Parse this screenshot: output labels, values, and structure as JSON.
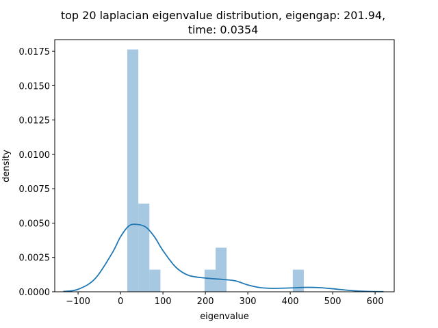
{
  "chart_data": {
    "type": "bar",
    "title_lines": [
      "top 20 laplacian eigenvalue distribution, eigengap: 201.94,",
      "time: 0.0354"
    ],
    "xlabel": "eigenvalue",
    "ylabel": "density",
    "xlim": [
      -155,
      645
    ],
    "ylim": [
      0,
      0.01835
    ],
    "xticks": [
      -100,
      0,
      100,
      200,
      300,
      400,
      500,
      600
    ],
    "xtick_labels": [
      "−100",
      "0",
      "100",
      "200",
      "300",
      "400",
      "500",
      "600"
    ],
    "yticks": [
      0,
      0.0025,
      0.005,
      0.0075,
      0.01,
      0.0125,
      0.015,
      0.0175
    ],
    "ytick_labels": [
      "0.0000",
      "0.0025",
      "0.0050",
      "0.0075",
      "0.0100",
      "0.0125",
      "0.0150",
      "0.0175"
    ],
    "histogram": {
      "color": "#a6c8e0",
      "bins": [
        {
          "x0": 16,
          "x1": 42,
          "density": 0.01763
        },
        {
          "x0": 42,
          "x1": 68,
          "density": 0.00642
        },
        {
          "x0": 68,
          "x1": 94,
          "density": 0.00161
        },
        {
          "x0": 94,
          "x1": 120,
          "density": 0
        },
        {
          "x0": 120,
          "x1": 146,
          "density": 0
        },
        {
          "x0": 146,
          "x1": 172,
          "density": 0
        },
        {
          "x0": 172,
          "x1": 198,
          "density": 0
        },
        {
          "x0": 198,
          "x1": 224,
          "density": 0.00161
        },
        {
          "x0": 224,
          "x1": 250,
          "density": 0.00321
        },
        {
          "x0": 250,
          "x1": 276,
          "density": 0
        },
        {
          "x0": 276,
          "x1": 302,
          "density": 0
        },
        {
          "x0": 302,
          "x1": 328,
          "density": 0
        },
        {
          "x0": 328,
          "x1": 354,
          "density": 0
        },
        {
          "x0": 354,
          "x1": 380,
          "density": 0
        },
        {
          "x0": 380,
          "x1": 406,
          "density": 0
        },
        {
          "x0": 406,
          "x1": 432,
          "density": 0.00161
        }
      ]
    },
    "kde": {
      "color": "#1f77b4",
      "x": [
        -135,
        -100,
        -60,
        -20,
        0,
        20,
        40,
        60,
        80,
        100,
        130,
        160,
        200,
        240,
        270,
        300,
        330,
        360,
        400,
        440,
        470,
        500,
        540,
        580,
        620
      ],
      "y": [
        2e-05,
        0.00018,
        0.00095,
        0.0028,
        0.004,
        0.0048,
        0.0049,
        0.0047,
        0.004,
        0.003,
        0.0018,
        0.0012,
        0.001,
        0.0009,
        0.0008,
        0.0005,
        0.0003,
        0.00025,
        0.00028,
        0.00032,
        0.0003,
        0.00022,
        0.0001,
        3e-05,
        1e-05
      ]
    }
  }
}
